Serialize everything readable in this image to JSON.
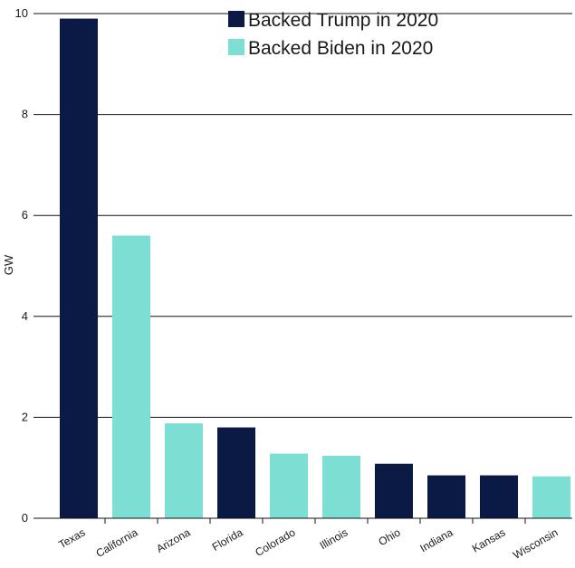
{
  "chart_data": {
    "type": "bar",
    "ylabel": "GW",
    "ylim": [
      0,
      10
    ],
    "yticks": [
      0,
      2,
      4,
      6,
      8,
      10
    ],
    "ytick_labels": [
      "0",
      "2",
      "4",
      "6",
      "8",
      "10"
    ],
    "grid": true,
    "legend_position": "top-right",
    "categories": [
      "Texas",
      "California",
      "Arizona",
      "Florida",
      "Colorado",
      "Illinois",
      "Ohio",
      "Indiana",
      "Kansas",
      "Wisconsin"
    ],
    "values": [
      9.9,
      5.6,
      1.88,
      1.8,
      1.28,
      1.24,
      1.08,
      0.85,
      0.85,
      0.83
    ],
    "groups": [
      "Backed Trump in 2020",
      "Backed Biden in 2020",
      "Backed Biden in 2020",
      "Backed Trump in 2020",
      "Backed Biden in 2020",
      "Backed Biden in 2020",
      "Backed Trump in 2020",
      "Backed Trump in 2020",
      "Backed Trump in 2020",
      "Backed Biden in 2020"
    ],
    "legend": [
      {
        "name": "Backed Trump in 2020",
        "color": "#0b1a44"
      },
      {
        "name": "Backed Biden in 2020",
        "color": "#7ddfd4"
      }
    ]
  }
}
